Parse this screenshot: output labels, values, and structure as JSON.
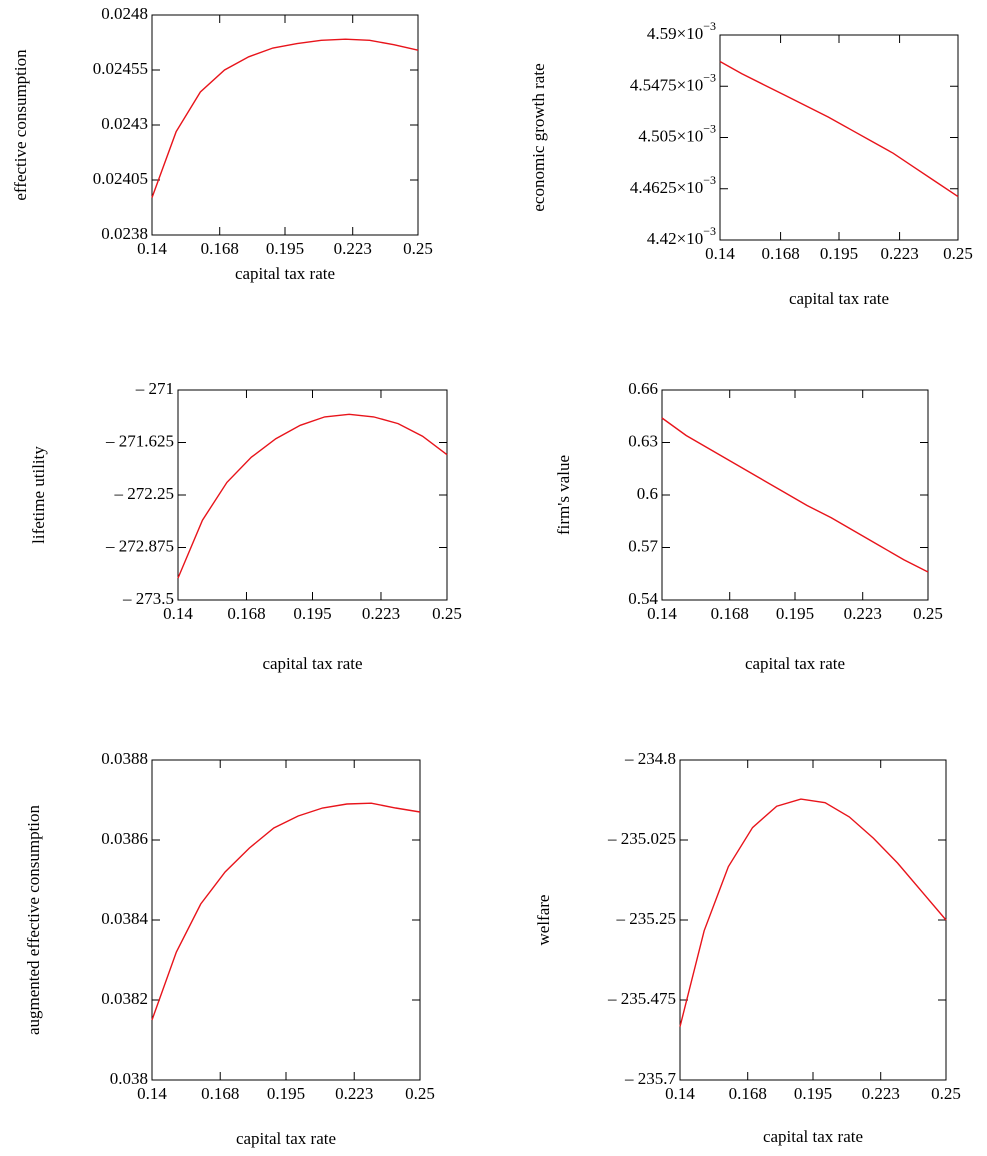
{
  "chart_data": [
    {
      "type": "line",
      "y_label": "effective consumption",
      "x_label": "capital tax rate",
      "x": [
        0.14,
        0.15,
        0.16,
        0.17,
        0.18,
        0.19,
        0.2,
        0.21,
        0.22,
        0.23,
        0.24,
        0.25
      ],
      "series": [
        {
          "color": "#e8141b",
          "values": [
            0.02397,
            0.02427,
            0.02445,
            0.02455,
            0.02461,
            0.02465,
            0.02467,
            0.024685,
            0.02469,
            0.024685,
            0.024665,
            0.02464
          ]
        }
      ],
      "xlim": [
        0.14,
        0.25
      ],
      "xticks": [
        0.14,
        0.168,
        0.195,
        0.223,
        0.25
      ],
      "ylim": [
        0.0238,
        0.0248
      ],
      "yticks": [
        0.0238,
        0.02405,
        0.0243,
        0.02455,
        0.0248
      ]
    },
    {
      "type": "line",
      "y_label": "economic growth rate",
      "x_label": "capital tax rate",
      "x": [
        0.14,
        0.15,
        0.16,
        0.17,
        0.18,
        0.19,
        0.2,
        0.21,
        0.22,
        0.23,
        0.24,
        0.25
      ],
      "series": [
        {
          "color": "#e8141b",
          "values": [
            0.004568,
            0.004558,
            0.004549,
            0.00454,
            0.004531,
            0.004522,
            0.004512,
            0.004502,
            0.004492,
            0.00448,
            0.004468,
            0.004456
          ]
        }
      ],
      "xlim": [
        0.14,
        0.25
      ],
      "xticks": [
        0.14,
        0.168,
        0.195,
        0.223,
        0.25
      ],
      "ylim": [
        0.00442,
        0.00459
      ],
      "yticks": [
        {
          "value": 0.00442,
          "label": "4.42×10",
          "exponent": "−3"
        },
        {
          "value": 0.0044625,
          "label": "4.4625×10",
          "exponent": "−3"
        },
        {
          "value": 0.004505,
          "label": "4.505×10",
          "exponent": "−3"
        },
        {
          "value": 0.0045475,
          "label": "4.5475×10",
          "exponent": "−3"
        },
        {
          "value": 0.00459,
          "label": "4.59×10",
          "exponent": "−3"
        }
      ]
    },
    {
      "type": "line",
      "y_label": "lifetime utility",
      "x_label": "capital tax rate",
      "x": [
        0.14,
        0.15,
        0.16,
        0.17,
        0.18,
        0.19,
        0.2,
        0.21,
        0.22,
        0.23,
        0.24,
        0.25
      ],
      "series": [
        {
          "color": "#e8141b",
          "values": [
            -273.24,
            -272.55,
            -272.1,
            -271.8,
            -271.58,
            -271.42,
            -271.32,
            -271.29,
            -271.32,
            -271.4,
            -271.55,
            -271.77
          ]
        }
      ],
      "xlim": [
        0.14,
        0.25
      ],
      "xticks": [
        0.14,
        0.168,
        0.195,
        0.223,
        0.25
      ],
      "ylim": [
        -273.5,
        -271
      ],
      "yticks": [
        {
          "value": -273.5,
          "label": "– 273.5"
        },
        {
          "value": -272.875,
          "label": "– 272.875"
        },
        {
          "value": -272.25,
          "label": "– 272.25"
        },
        {
          "value": -271.625,
          "label": "– 271.625"
        },
        {
          "value": -271,
          "label": "– 271"
        }
      ]
    },
    {
      "type": "line",
      "y_label": "firm's value",
      "x_label": "capital tax rate",
      "x": [
        0.14,
        0.15,
        0.16,
        0.17,
        0.18,
        0.19,
        0.2,
        0.21,
        0.22,
        0.23,
        0.24,
        0.25
      ],
      "series": [
        {
          "color": "#e8141b",
          "values": [
            0.644,
            0.634,
            0.626,
            0.618,
            0.61,
            0.602,
            0.594,
            0.587,
            0.579,
            0.571,
            0.563,
            0.556
          ]
        }
      ],
      "xlim": [
        0.14,
        0.25
      ],
      "xticks": [
        0.14,
        0.168,
        0.195,
        0.223,
        0.25
      ],
      "ylim": [
        0.54,
        0.66
      ],
      "yticks": [
        0.54,
        0.57,
        0.6,
        0.63,
        0.66
      ]
    },
    {
      "type": "line",
      "y_label": "augmented effective consumption",
      "x_label": "capital tax rate",
      "x": [
        0.14,
        0.15,
        0.16,
        0.17,
        0.18,
        0.19,
        0.2,
        0.21,
        0.22,
        0.23,
        0.24,
        0.25
      ],
      "series": [
        {
          "color": "#e8141b",
          "values": [
            0.03815,
            0.03832,
            0.03844,
            0.03852,
            0.03858,
            0.03863,
            0.03866,
            0.03868,
            0.03869,
            0.038692,
            0.03868,
            0.03867
          ]
        }
      ],
      "xlim": [
        0.14,
        0.25
      ],
      "xticks": [
        0.14,
        0.168,
        0.195,
        0.223,
        0.25
      ],
      "ylim": [
        0.038,
        0.0388
      ],
      "yticks": [
        0.038,
        0.0382,
        0.0384,
        0.0386,
        0.0388
      ]
    },
    {
      "type": "line",
      "y_label": "welfare",
      "x_label": "capital tax rate",
      "x": [
        0.14,
        0.15,
        0.16,
        0.17,
        0.18,
        0.19,
        0.2,
        0.21,
        0.22,
        0.23,
        0.24,
        0.25
      ],
      "series": [
        {
          "color": "#e8141b",
          "values": [
            -235.55,
            -235.28,
            -235.1,
            -234.99,
            -234.93,
            -234.91,
            -234.92,
            -234.96,
            -235.02,
            -235.09,
            -235.17,
            -235.25
          ]
        }
      ],
      "xlim": [
        0.14,
        0.25
      ],
      "xticks": [
        0.14,
        0.168,
        0.195,
        0.223,
        0.25
      ],
      "ylim": [
        -235.7,
        -234.8
      ],
      "yticks": [
        {
          "value": -235.7,
          "label": "– 235.7"
        },
        {
          "value": -235.475,
          "label": "– 235.475"
        },
        {
          "value": -235.25,
          "label": "– 235.25"
        },
        {
          "value": -235.025,
          "label": "– 235.025"
        },
        {
          "value": -234.8,
          "label": "– 234.8"
        }
      ]
    }
  ]
}
